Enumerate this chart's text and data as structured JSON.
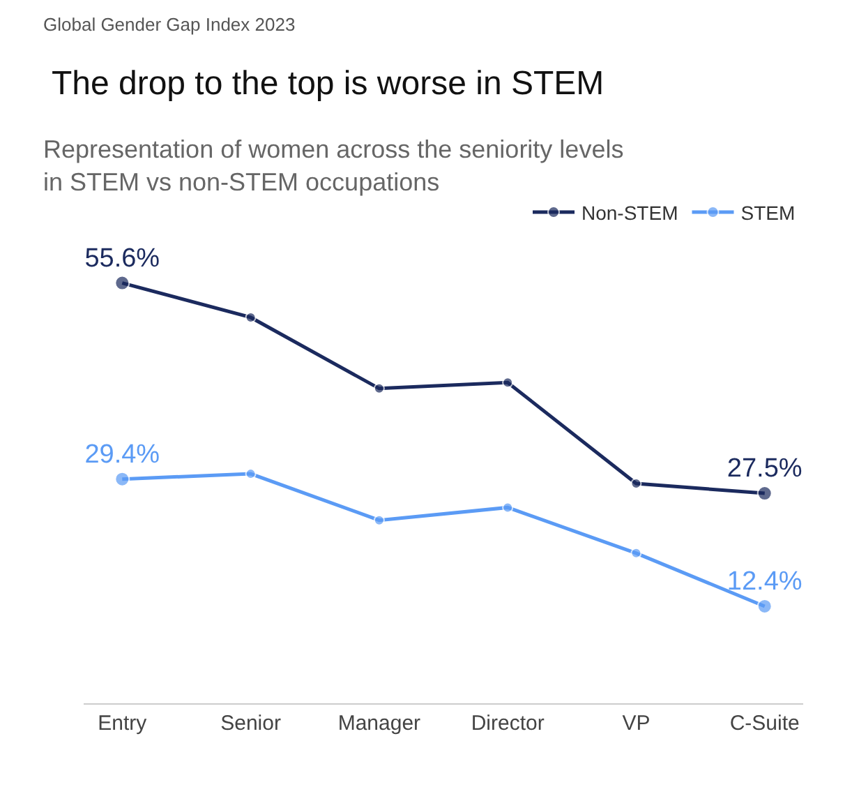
{
  "chart_data": {
    "type": "line",
    "title": "The drop to the top is worse in STEM",
    "subtitle": "Representation of women across the seniority levels\nin STEM vs non-STEM occupations",
    "annotations": [
      "Global Gender Gap Index 2023"
    ],
    "categories": [
      "Entry",
      "Senior",
      "Manager",
      "Director",
      "VP",
      "C-Suite"
    ],
    "series": [
      {
        "name": "Non-STEM",
        "color": "#1b2a5e",
        "values": [
          55.6,
          51.0,
          41.5,
          42.3,
          28.8,
          27.5
        ],
        "value_labels": [
          "55.6%",
          null,
          null,
          null,
          null,
          "27.5%"
        ]
      },
      {
        "name": "STEM",
        "color": "#5b9bf5",
        "values": [
          29.4,
          30.1,
          23.9,
          25.6,
          19.5,
          12.4
        ],
        "value_labels": [
          "29.4%",
          null,
          null,
          null,
          null,
          "12.4%"
        ]
      }
    ],
    "legend": "top right",
    "marker": "circle",
    "line_style": "solid"
  }
}
